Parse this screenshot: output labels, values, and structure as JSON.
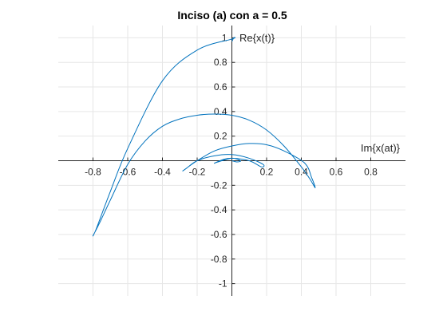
{
  "chart_data": {
    "type": "line",
    "title": "Inciso (a) con a = 0.5",
    "xlabel": "Im{x(at)}",
    "ylabel": "Re{x(t)}",
    "xlim": [
      -1,
      1
    ],
    "ylim": [
      -1.1,
      1.1
    ],
    "xticks": [
      -0.8,
      -0.6,
      -0.4,
      -0.2,
      0.2,
      0.4,
      0.6,
      0.8
    ],
    "xtick_labels": [
      "-0.8",
      "-0.6",
      "-0.4",
      "-0.2",
      "0.2",
      "0.4",
      "0.6",
      "0.8"
    ],
    "yticks": [
      -1,
      -0.8,
      -0.6,
      -0.4,
      -0.2,
      0.2,
      0.4,
      0.6,
      0.8,
      1
    ],
    "ytick_labels": [
      "-1",
      "-0.8",
      "-0.6",
      "-0.4",
      "-0.2",
      "0.2",
      "0.4",
      "0.6",
      "0.8",
      "1"
    ],
    "grid": true,
    "axes_through_origin": true,
    "series_color": "#0072BD",
    "series": [
      {
        "x": [
          0,
          0.01,
          0,
          -0.2,
          -0.4,
          -0.6,
          -0.7,
          -0.78,
          -0.8,
          -0.76,
          -0.7,
          -0.6,
          -0.5,
          -0.4,
          -0.3,
          -0.2,
          -0.1,
          0,
          0.1,
          0.2,
          0.3,
          0.4,
          0.45,
          0.48,
          0.46,
          0.42,
          0.3,
          0.2,
          0.1,
          0,
          -0.1,
          -0.2,
          -0.28,
          -0.26,
          -0.2,
          -0.1,
          0,
          0.1,
          0.18,
          0.17,
          0.1,
          0,
          -0.05,
          -0.1,
          -0.08,
          0,
          0.05,
          0.03,
          0
        ],
        "y": [
          0.97,
          1.0,
          0.99,
          0.9,
          0.65,
          0.1,
          -0.25,
          -0.55,
          -0.61,
          -0.5,
          -0.32,
          -0.03,
          0.16,
          0.28,
          0.34,
          0.37,
          0.38,
          0.37,
          0.33,
          0.25,
          0.12,
          -0.05,
          -0.15,
          -0.22,
          -0.14,
          -0.02,
          0.08,
          0.13,
          0.14,
          0.12,
          0.08,
          0.0,
          -0.08,
          -0.06,
          0.0,
          0.04,
          0.05,
          0.02,
          -0.03,
          -0.05,
          0.0,
          0.02,
          0.01,
          -0.02,
          -0.01,
          0.02,
          0.0,
          -0.01,
          0.0
        ]
      }
    ]
  }
}
